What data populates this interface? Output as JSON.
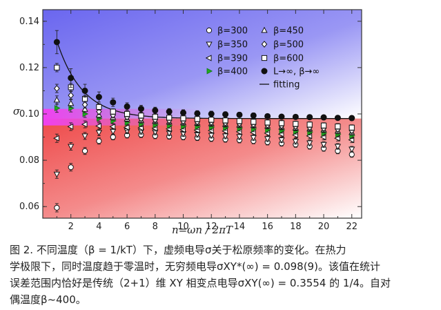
{
  "chart_data": {
    "type": "scatter",
    "xlabel": "n=ωn / 2πT",
    "ylabel": "σ",
    "xlim": [
      0,
      22.7
    ],
    "ylim": [
      0.055,
      0.145
    ],
    "xticks": [
      2,
      4,
      6,
      8,
      10,
      12,
      14,
      16,
      18,
      20,
      22
    ],
    "yticks": [
      0.06,
      0.08,
      0.1,
      0.12,
      0.14
    ],
    "tick_labels_x": [
      "2",
      "4",
      "6",
      "8",
      "10",
      "12",
      "14",
      "16",
      "18",
      "20",
      "22"
    ],
    "tick_labels_y": [
      "0.06",
      "0.08",
      "0.10",
      "0.12",
      "0.14"
    ],
    "background": {
      "upper_color": "#6f6cf0",
      "lower_color": "#f05050",
      "boundary_sigma": 0.098
    },
    "legend_position": "top-right",
    "series": [
      {
        "name": "β=300",
        "marker": "circle-open",
        "x": [
          1,
          2,
          3,
          4,
          5,
          6,
          7,
          8,
          9,
          10,
          11,
          12,
          13,
          14,
          15,
          16,
          17,
          18,
          19,
          20,
          21,
          22
        ],
        "y": [
          0.0595,
          0.077,
          0.084,
          0.0883,
          0.09,
          0.0908,
          0.091,
          0.0905,
          0.0903,
          0.09,
          0.0897,
          0.0893,
          0.089,
          0.0887,
          0.0883,
          0.0878,
          0.0873,
          0.0868,
          0.086,
          0.0851,
          0.084,
          0.0825
        ]
      },
      {
        "name": "β=350",
        "marker": "triangle-down-open",
        "x": [
          1,
          2,
          3,
          4,
          5,
          6,
          7,
          8,
          9,
          10,
          11,
          12,
          13,
          14,
          15,
          16,
          17,
          18,
          19,
          20,
          21,
          22
        ],
        "y": [
          0.074,
          0.086,
          0.0905,
          0.092,
          0.0925,
          0.0927,
          0.0925,
          0.0922,
          0.0918,
          0.0915,
          0.0912,
          0.0908,
          0.0905,
          0.0902,
          0.0898,
          0.0893,
          0.0888,
          0.0882,
          0.0875,
          0.0868,
          0.086,
          0.0848
        ]
      },
      {
        "name": "β=390",
        "marker": "triangle-left-open",
        "x": [
          1,
          2,
          3,
          4,
          5,
          6,
          7,
          8,
          9,
          10,
          11,
          12,
          13,
          14,
          15,
          16,
          17,
          18,
          19,
          20,
          21,
          22
        ],
        "y": [
          0.0895,
          0.0945,
          0.0955,
          0.0948,
          0.0945,
          0.0942,
          0.094,
          0.0938,
          0.0935,
          0.0932,
          0.093,
          0.0928,
          0.0926,
          0.0923,
          0.092,
          0.0917,
          0.0913,
          0.0909,
          0.0905,
          0.09,
          0.0895,
          0.0888
        ]
      },
      {
        "name": "β=400",
        "marker": "triangle-right-filled",
        "x": [
          1,
          2,
          3,
          4,
          5,
          6,
          7,
          8,
          9,
          10,
          11,
          12,
          13,
          14,
          15,
          16,
          17,
          18,
          19,
          20,
          21,
          22
        ],
        "y": [
          0.1025,
          0.1025,
          0.1,
          0.098,
          0.097,
          0.0962,
          0.0957,
          0.0953,
          0.095,
          0.0947,
          0.0945,
          0.0943,
          0.0941,
          0.0938,
          0.0935,
          0.0932,
          0.0929,
          0.0925,
          0.0921,
          0.0917,
          0.0912,
          0.0906
        ]
      },
      {
        "name": "β=450",
        "marker": "triangle-up-open",
        "x": [
          1,
          2,
          3,
          4,
          5,
          6,
          7,
          8,
          9,
          10,
          11,
          12,
          13,
          14,
          15,
          16,
          17,
          18,
          19,
          20,
          21,
          22
        ],
        "y": [
          0.106,
          0.1045,
          0.102,
          0.0995,
          0.0985,
          0.0978,
          0.0972,
          0.0968,
          0.0965,
          0.0962,
          0.096,
          0.0958,
          0.0955,
          0.0952,
          0.095,
          0.0947,
          0.0943,
          0.0939,
          0.0935,
          0.0931,
          0.0926,
          0.092
        ]
      },
      {
        "name": "β=500",
        "marker": "diamond-open",
        "x": [
          1,
          2,
          3,
          4,
          5,
          6,
          7,
          8,
          9,
          10,
          11,
          12,
          13,
          14,
          15,
          16,
          17,
          18,
          19,
          20,
          21,
          22
        ],
        "y": [
          0.111,
          0.108,
          0.104,
          0.101,
          0.0995,
          0.0987,
          0.098,
          0.0975,
          0.0972,
          0.0969,
          0.0966,
          0.0964,
          0.0961,
          0.0958,
          0.0955,
          0.0952,
          0.0949,
          0.0946,
          0.0942,
          0.0938,
          0.0934,
          0.0928
        ]
      },
      {
        "name": "β=600",
        "marker": "square-open",
        "x": [
          1,
          2,
          3,
          4,
          5,
          6,
          7,
          8,
          9,
          10,
          11,
          12,
          13,
          14,
          15,
          16,
          17,
          18,
          19,
          20,
          21,
          22
        ],
        "y": [
          0.12,
          0.1115,
          0.1065,
          0.103,
          0.101,
          0.1,
          0.0993,
          0.0988,
          0.0984,
          0.0981,
          0.0978,
          0.0975,
          0.0972,
          0.0969,
          0.0966,
          0.0963,
          0.096,
          0.0957,
          0.0954,
          0.095,
          0.0946,
          0.0941
        ]
      },
      {
        "name": "L→∞, β→∞",
        "marker": "circle-filled",
        "x": [
          1,
          2,
          3,
          4,
          5,
          6,
          7,
          8,
          9,
          10,
          11,
          12,
          13,
          14,
          15,
          16,
          17,
          18,
          19,
          20,
          21,
          22
        ],
        "y": [
          0.131,
          0.1155,
          0.11,
          0.1073,
          0.105,
          0.1032,
          0.1022,
          0.1015,
          0.101,
          0.1005,
          0.1002,
          0.1,
          0.0998,
          0.0996,
          0.0993,
          0.099,
          0.0988,
          0.0987,
          0.0986,
          0.0985,
          0.0983,
          0.0982
        ],
        "err": [
          0.005,
          0.004,
          0.0028,
          0.0022,
          0.0018,
          0.0016,
          0.0015,
          0.0014,
          0.0013,
          0.0013,
          0.0012,
          0.0012,
          0.0011,
          0.0011,
          0.0011,
          0.001,
          0.001,
          0.001,
          0.001,
          0.001,
          0.001,
          0.001
        ]
      }
    ],
    "fit": {
      "name": "fitting",
      "sigma_inf": 0.098,
      "amplitude": 0.0335,
      "decay": 0.55
    }
  },
  "caption": {
    "line1": "图 2. 不同温度（β = 1/kT）下，虚频电导σ关于松原频率的变化。在热力",
    "line2": "学极限下，同时温度趋于零温时，无穷频电导σXY*(∞) = 0.098(9)。该值在统计",
    "line3": "误差范围内恰好是传统（2+1）维 XY 相变点电导σXY(∞) = 0.3554 的 1/4。自对",
    "line4": "偶温度β~400。"
  }
}
